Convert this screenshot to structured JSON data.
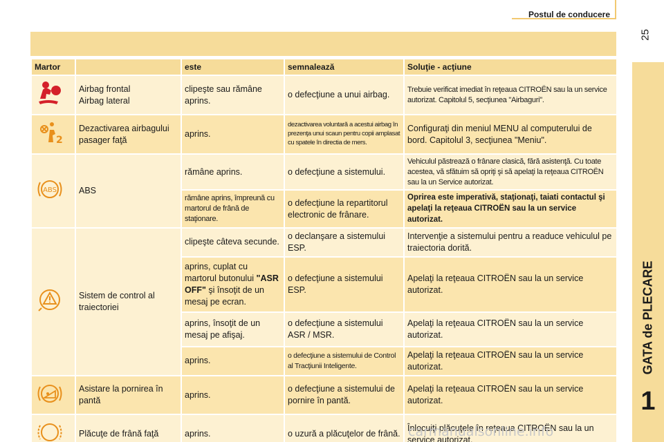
{
  "header": {
    "section_title": "Postul de conducere",
    "page_number": "25"
  },
  "side_tab": {
    "label": "GATA de PLECARE",
    "chapter": "1"
  },
  "table": {
    "headers": [
      "Martor",
      "",
      "este",
      "semnalează",
      "Soluţie - acţiune"
    ],
    "rows": [
      {
        "icon": "airbag-warning-icon",
        "name": "Airbag frontal\nAirbag lateral",
        "state": "clipeşte sau rămâne aprins.",
        "signal": "o defecţiune a unui airbag.",
        "solution": "Trebuie verificat imediat în reţeaua CITROËN sau la un service autorizat. Capitolul 5, secţiunea \"Airbaguri\"."
      },
      {
        "icon": "passenger-airbag-off-icon",
        "name": "Dezactivarea airbagului pasager faţă",
        "state": "aprins.",
        "signal": "dezactivarea voluntară a acestui airbag în prezenţa unui scaun pentru copii amplasat cu spatele în directia de mers.",
        "solution": "Configuraţi din meniul MENU al computerului de bord. Capitolul 3, secţiunea \"Meniu\"."
      },
      {
        "icon": "abs-warning-icon",
        "name": "ABS",
        "state": "rămâne aprins.",
        "signal": "o defecţiune a sistemului.",
        "solution": "Vehiculul păstrează o frânare clasică, fără asistenţă. Cu toate acestea, vă sfătuim să opriţi şi să apelaţi la reţeaua CITROËN sau la un Service autorizat."
      },
      {
        "state": "rămâne aprins, împreună cu martorul de frână de staţionare.",
        "signal": "o defecţiune la repartitorul electronic de frânare.",
        "solution": "Oprirea este imperativă, staţionaţi, taiati contactul şi apelaţi la reţeaua CITROËN sau la un service autorizat."
      },
      {
        "icon": "stability-control-icon",
        "name": "Sistem de control al traiectoriei",
        "state": "clipeşte câteva secunde.",
        "signal": "o declanşare a sistemului ESP.",
        "solution": "Intervenţie a sistemului pentru a readuce vehiculul pe traiectoria dorită."
      },
      {
        "state_prefix": "aprins, cuplat cu martorul butonului",
        "state_bold": "\"ASR OFF\"",
        "state_suffix": "şi însoţit de un mesaj pe ecran.",
        "signal": "o defecţiune a sistemului ESP.",
        "solution": "Apelaţi la reţeaua CITROËN sau la un service autorizat."
      },
      {
        "state": "aprins, însoţit de un mesaj pe afişaj.",
        "signal": "o defecţiune a sistemului ASR / MSR.",
        "solution": "Apelaţi la reţeaua CITROËN sau la un service autorizat."
      },
      {
        "state": "aprins.",
        "signal": "o defecţiune a sistemului de Control al Tracţiunii Inteligente.",
        "solution": "Apelaţi la reţeaua CITROËN sau la un service autorizat."
      },
      {
        "icon": "hill-start-assist-icon",
        "name": "Asistare la pornirea în pantă",
        "state": "aprins.",
        "signal": "o defecţiune a sistemului de pornire în pantă.",
        "solution": "Apelaţi la reţeaua CITROËN sau la un service autorizat."
      },
      {
        "icon": "brake-pad-wear-icon",
        "name": "Plăcuţe de frână faţă",
        "state": "aprins.",
        "signal": "o uzură a plăcuţelor de frână.",
        "solution": "Înlocuiţi plăcuţele în reţeaua CITROËN sau la un service autorizat."
      }
    ]
  },
  "colors": {
    "header_bg": "#f6dc9a",
    "row_light": "#fdf1d2",
    "row_alt": "#fbe5ae",
    "icon_red": "#d4202a",
    "icon_orange": "#e8901c"
  },
  "watermark": "carmanualsonline.info"
}
